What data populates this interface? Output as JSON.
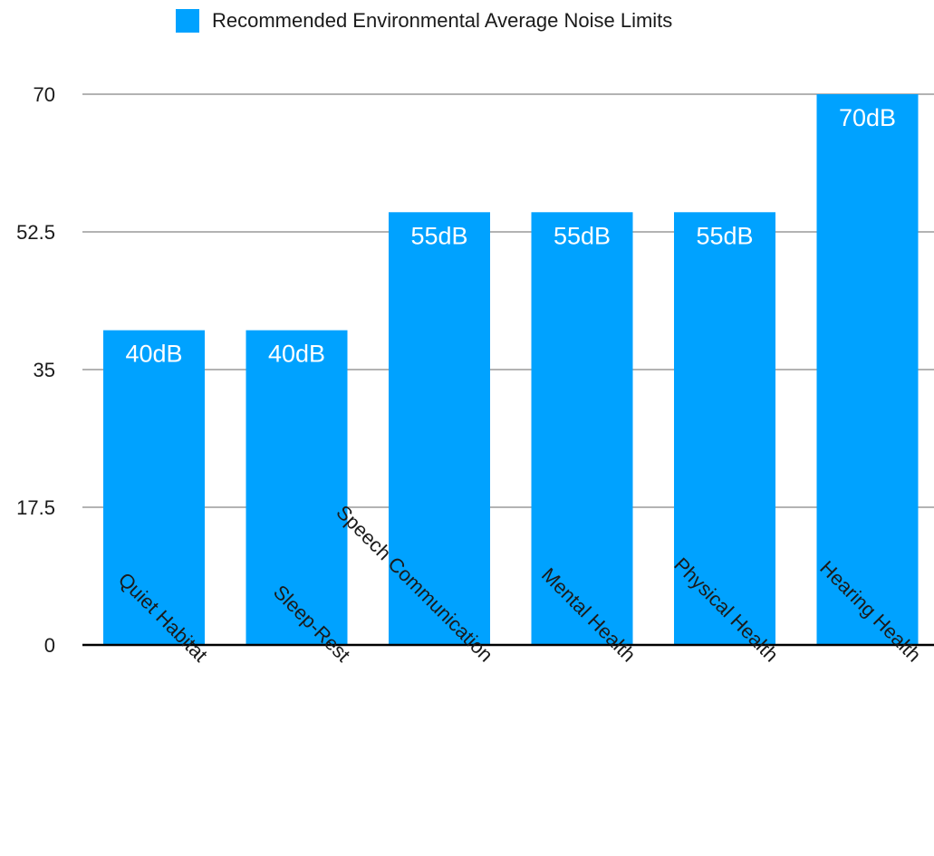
{
  "chart_data": {
    "type": "bar",
    "categories": [
      "Quiet Habitat",
      "Sleep-Rest",
      "Speech Communication",
      "Mental Health",
      "Physical Health",
      "Hearing Health"
    ],
    "series": [
      {
        "name": "Recommended Environmental Average Noise Limits",
        "values": [
          40,
          40,
          55,
          55,
          55,
          70
        ],
        "data_labels": [
          "40dB",
          "40dB",
          "55dB",
          "55dB",
          "55dB",
          "70dB"
        ]
      }
    ],
    "y_ticks": [
      "0",
      "17.5",
      "35",
      "52.5",
      "70"
    ],
    "ylim": [
      0,
      70
    ],
    "grid": true,
    "legend_position": "top",
    "colors": {
      "bar": "#00a2ff",
      "grid": "#b3b3b3",
      "axis": "#000000",
      "label": "#ffffff"
    }
  }
}
